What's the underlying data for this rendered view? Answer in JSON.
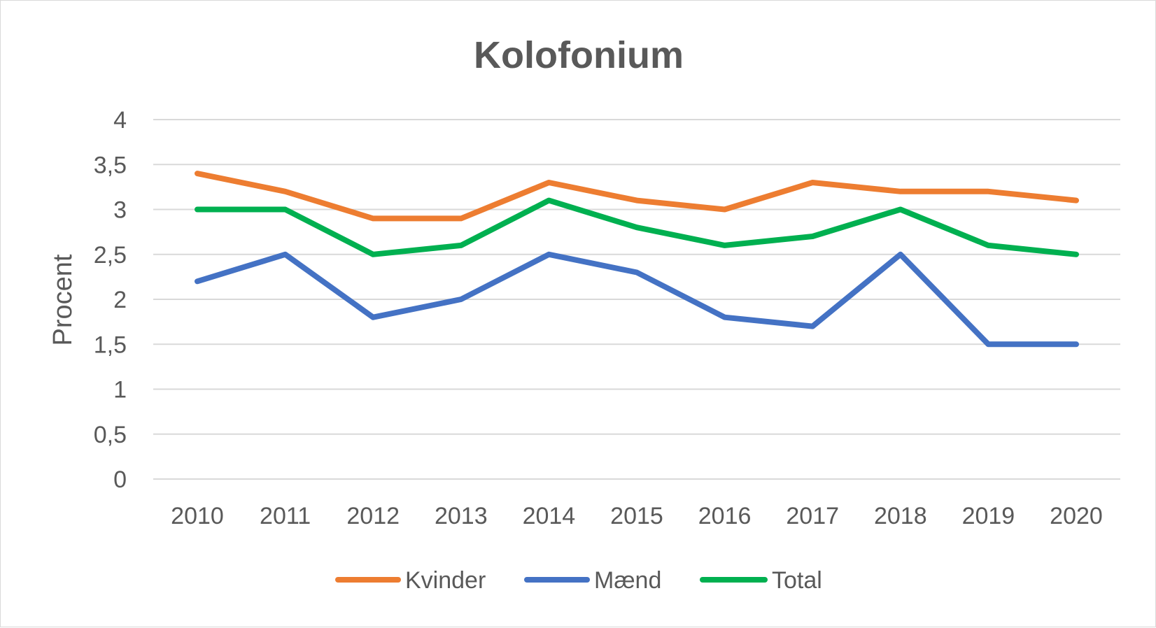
{
  "chart_data": {
    "type": "line",
    "title": "Kolofonium",
    "xlabel": "",
    "ylabel": "Procent",
    "x": [
      2010,
      2011,
      2012,
      2013,
      2014,
      2015,
      2016,
      2017,
      2018,
      2019,
      2020
    ],
    "x_tick_labels": [
      "2010",
      "2011",
      "2012",
      "2013",
      "2014",
      "2015",
      "2016",
      "2017",
      "2018",
      "2019",
      "2020"
    ],
    "ylim": [
      0,
      4
    ],
    "y_ticks": [
      0,
      0.5,
      1,
      1.5,
      2,
      2.5,
      3,
      3.5,
      4
    ],
    "y_tick_labels": [
      "0",
      "0,5",
      "1",
      "1,5",
      "2",
      "2,5",
      "3",
      "3,5",
      "4"
    ],
    "grid": true,
    "legend_position": "bottom",
    "series": [
      {
        "name": "Kvinder",
        "color": "#ED7D31",
        "values": [
          3.4,
          3.2,
          2.9,
          2.9,
          3.3,
          3.1,
          3.0,
          3.3,
          3.2,
          3.2,
          3.1
        ]
      },
      {
        "name": "Mænd",
        "color": "#4472C4",
        "values": [
          2.2,
          2.5,
          1.8,
          2.0,
          2.5,
          2.3,
          1.8,
          1.7,
          2.5,
          1.5,
          1.5
        ]
      },
      {
        "name": "Total",
        "color": "#00B050",
        "values": [
          3.0,
          3.0,
          2.5,
          2.6,
          3.1,
          2.8,
          2.6,
          2.7,
          3.0,
          2.6,
          2.5
        ]
      }
    ]
  }
}
